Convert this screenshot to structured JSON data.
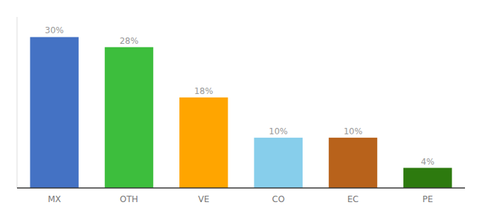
{
  "chart_data": {
    "type": "bar",
    "categories": [
      "MX",
      "OTH",
      "VE",
      "CO",
      "EC",
      "PE"
    ],
    "values": [
      30,
      28,
      18,
      10,
      10,
      4
    ],
    "value_labels": [
      "30%",
      "28%",
      "18%",
      "10%",
      "10%",
      "4%"
    ],
    "colors": [
      "#4472C4",
      "#3DBE3D",
      "#FFA500",
      "#87CEEB",
      "#B8621B",
      "#2D7A0F"
    ],
    "ylim": [
      0,
      34
    ],
    "tick_labels": "x"
  }
}
